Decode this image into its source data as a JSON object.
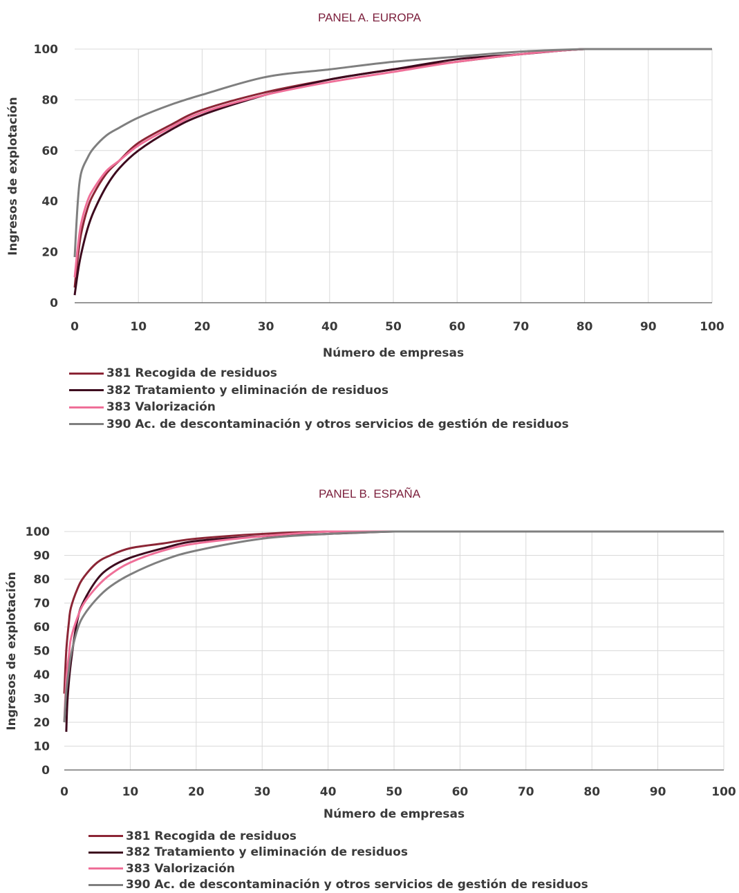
{
  "panels": [
    {
      "title": "PANEL A. EUROPA",
      "xlabel": "Número de empresas",
      "ylabel": "Ingresos de explotación",
      "legend": [
        {
          "label": "381 Recogida de residuos",
          "color": "#8b2535"
        },
        {
          "label": "382 Tratamiento y eliminación de residuos",
          "color": "#3d0a1e"
        },
        {
          "label": "383 Valorización",
          "color": "#ef6f98"
        },
        {
          "label": "390 Ac. de descontaminación y otros servicios de gestión de residuos",
          "color": "#7f7f7f"
        }
      ]
    },
    {
      "title": "PANEL B. ESPAÑA",
      "xlabel": "Número de empresas",
      "ylabel": "Ingresos de explotación",
      "legend": [
        {
          "label": "381 Recogida de residuos",
          "color": "#8b2535"
        },
        {
          "label": "382 Tratamiento y eliminación de residuos",
          "color": "#3d0a1e"
        },
        {
          "label": "383 Valorización",
          "color": "#ef6f98"
        },
        {
          "label": "390 Ac. de descontaminación y otros servicios de gestión de residuos",
          "color": "#7f7f7f"
        }
      ]
    }
  ],
  "chart_data": [
    {
      "type": "line",
      "title": "PANEL A. EUROPA",
      "xlabel": "Número de empresas",
      "ylabel": "Ingresos de explotación",
      "xlim": [
        0,
        100
      ],
      "ylim": [
        0,
        100
      ],
      "xticks": [
        0,
        10,
        20,
        30,
        40,
        50,
        60,
        70,
        80,
        90,
        100
      ],
      "yticks": [
        0,
        20,
        40,
        60,
        80,
        100
      ],
      "grid": true,
      "legend_position": "bottom-left",
      "series": [
        {
          "name": "381 Recogida de residuos",
          "color": "#8b2535",
          "x": [
            0,
            0.5,
            1,
            2,
            3,
            5,
            7,
            10,
            15,
            20,
            30,
            40,
            50,
            60,
            70,
            80,
            90,
            100
          ],
          "y": [
            6,
            18,
            27,
            37,
            43,
            51,
            56,
            63,
            70,
            76,
            83,
            88,
            92,
            95,
            98,
            100,
            100,
            100
          ]
        },
        {
          "name": "382 Tratamiento y eliminación de residuos",
          "color": "#3d0a1e",
          "x": [
            0,
            0.5,
            1,
            2,
            3,
            5,
            7,
            10,
            15,
            20,
            30,
            40,
            50,
            60,
            70,
            80,
            90,
            100
          ],
          "y": [
            3,
            12,
            19,
            29,
            36,
            46,
            53,
            60,
            68,
            74,
            82,
            88,
            92,
            96,
            98,
            100,
            100,
            100
          ]
        },
        {
          "name": "383 Valorización",
          "color": "#ef6f98",
          "x": [
            0,
            0.5,
            1,
            2,
            3,
            5,
            7,
            10,
            15,
            20,
            30,
            40,
            50,
            60,
            70,
            80,
            90,
            100
          ],
          "y": [
            10,
            22,
            31,
            40,
            45,
            52,
            56,
            62,
            69,
            75,
            82,
            87,
            91,
            95,
            98,
            100,
            100,
            100
          ]
        },
        {
          "name": "390 Ac. de descontaminación y otros servicios de gestión de residuos",
          "color": "#7f7f7f",
          "x": [
            0,
            0.5,
            1,
            2,
            3,
            5,
            7,
            10,
            15,
            20,
            30,
            40,
            50,
            60,
            70,
            80,
            90,
            100
          ],
          "y": [
            18,
            40,
            51,
            57,
            61,
            66,
            69,
            73,
            78,
            82,
            89,
            92,
            95,
            97,
            99,
            100,
            100,
            100
          ]
        }
      ]
    },
    {
      "type": "line",
      "title": "PANEL B. ESPAÑA",
      "xlabel": "Número de empresas",
      "ylabel": "Ingresos de explotación",
      "xlim": [
        0,
        100
      ],
      "ylim": [
        0,
        100
      ],
      "xticks": [
        0,
        10,
        20,
        30,
        40,
        50,
        60,
        70,
        80,
        90,
        100
      ],
      "yticks": [
        0,
        10,
        20,
        30,
        40,
        50,
        60,
        70,
        80,
        90,
        100
      ],
      "grid": true,
      "legend_position": "bottom-left",
      "series": [
        {
          "name": "381 Recogida de residuos",
          "color": "#8b2535",
          "x": [
            0,
            0.3,
            0.7,
            1,
            2,
            3,
            5,
            7,
            10,
            15,
            20,
            30,
            40,
            50,
            60,
            70,
            80,
            90,
            100
          ],
          "y": [
            32,
            50,
            62,
            68,
            76,
            81,
            87,
            90,
            93,
            95,
            97,
            99,
            100,
            100,
            100,
            100,
            100,
            100,
            100
          ]
        },
        {
          "name": "382 Tratamiento y eliminación de residuos",
          "color": "#3d0a1e",
          "x": [
            0.3,
            0.5,
            1,
            2,
            3,
            5,
            7,
            10,
            15,
            20,
            30,
            40,
            50,
            60,
            70,
            80,
            90,
            100
          ],
          "y": [
            16,
            30,
            45,
            63,
            71,
            80,
            85,
            89,
            93,
            96,
            98,
            99,
            100,
            100,
            100,
            100,
            100,
            100
          ]
        },
        {
          "name": "383 Valorización",
          "color": "#ef6f98",
          "x": [
            0,
            0.3,
            0.7,
            1,
            2,
            3,
            5,
            7,
            10,
            15,
            20,
            30,
            40,
            50,
            60,
            70,
            80,
            90,
            100
          ],
          "y": [
            20,
            38,
            48,
            55,
            64,
            70,
            77,
            82,
            87,
            92,
            95,
            98,
            100,
            100,
            100,
            100,
            100,
            100,
            100
          ]
        },
        {
          "name": "390 Ac. de descontaminación y otros servicios de gestión de residuos",
          "color": "#7f7f7f",
          "x": [
            0,
            0.3,
            0.7,
            1,
            2,
            3,
            5,
            7,
            10,
            15,
            20,
            30,
            40,
            50,
            60,
            70,
            80,
            90,
            100
          ],
          "y": [
            20,
            33,
            42,
            48,
            59,
            65,
            72,
            77,
            82,
            88,
            92,
            97,
            99,
            100,
            100,
            100,
            100,
            100,
            100
          ]
        }
      ]
    }
  ]
}
